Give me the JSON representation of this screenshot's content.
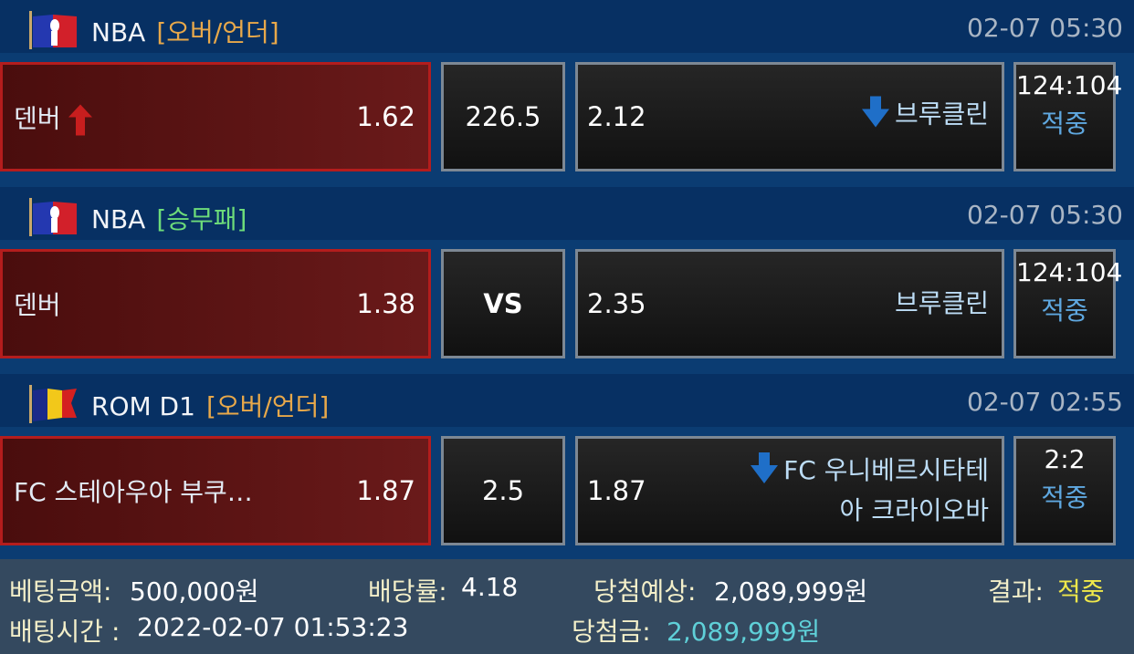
{
  "groups": [
    {
      "league": "NBA",
      "market": "[오버/언더]",
      "market_color": "#e8a84a",
      "time": "02-07 05:30",
      "flag": "nba-logo-icon",
      "home": {
        "team": "덴버",
        "odds": "1.62",
        "arrow": "up"
      },
      "middle": "226.5",
      "away": {
        "odds": "2.12",
        "team": "브루클린",
        "arrow": "down"
      },
      "score": "124:104",
      "result": "적중"
    },
    {
      "league": "NBA",
      "market": "[승무패]",
      "market_color": "#6ddc7a",
      "time": "02-07 05:30",
      "flag": "nba-logo-icon",
      "home": {
        "team": "덴버",
        "odds": "1.38",
        "arrow": ""
      },
      "middle": "VS",
      "away": {
        "odds": "2.35",
        "team": "브루클린",
        "arrow": ""
      },
      "score": "124:104",
      "result": "적중"
    },
    {
      "league": "ROM D1",
      "market": "[오버/언더]",
      "market_color": "#e8a84a",
      "time": "02-07 02:55",
      "flag": "romania-flag-icon",
      "home": {
        "team": "FC 스테아우아 부쿠…",
        "odds": "1.87",
        "arrow": ""
      },
      "middle": "2.5",
      "away": {
        "odds": "1.87",
        "team": "FC 우니베르시타테",
        "team2": "아 크라이오바",
        "arrow": "down"
      },
      "score": "2:2",
      "result": "적중"
    }
  ],
  "footer": {
    "bet_amount_label": "베팅금액:",
    "bet_amount": "500,000원",
    "rate_label": "배당률:",
    "rate": "4.18",
    "expected_label": "당첨예상:",
    "expected": "2,089,999원",
    "result_label": "결과:",
    "result": "적중",
    "bet_time_label": "배팅시간 :",
    "bet_time": "2022-02-07 01:53:23",
    "win_label": "당첨금:",
    "win": "2,089,999원"
  }
}
